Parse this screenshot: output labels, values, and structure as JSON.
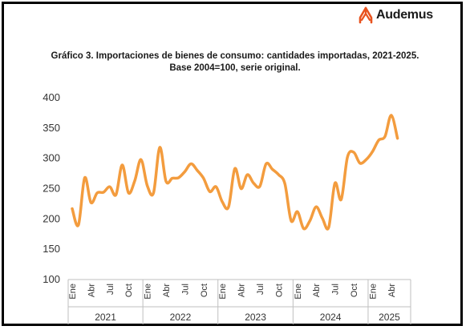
{
  "brand": {
    "name": "Audemus",
    "accent": "#e8531f"
  },
  "chart_data": {
    "type": "line",
    "title": "Gráfico 3. Importaciones de bienes de consumo: cantidades importadas, 2021-2025.",
    "subtitle": "Base 2004=100, serie original.",
    "xlabel": "",
    "ylabel": "",
    "ylim": [
      100,
      400
    ],
    "yticks": [
      100,
      150,
      200,
      250,
      300,
      350,
      400
    ],
    "grid": false,
    "color": "#f39c3e",
    "x": [
      "2021-01",
      "2021-02",
      "2021-03",
      "2021-04",
      "2021-05",
      "2021-06",
      "2021-07",
      "2021-08",
      "2021-09",
      "2021-10",
      "2021-11",
      "2021-12",
      "2022-01",
      "2022-02",
      "2022-03",
      "2022-04",
      "2022-05",
      "2022-06",
      "2022-07",
      "2022-08",
      "2022-09",
      "2022-10",
      "2022-11",
      "2022-12",
      "2023-01",
      "2023-02",
      "2023-03",
      "2023-04",
      "2023-05",
      "2023-06",
      "2023-07",
      "2023-08",
      "2023-09",
      "2023-10",
      "2023-11",
      "2023-12",
      "2024-01",
      "2024-02",
      "2024-03",
      "2024-04",
      "2024-05",
      "2024-06",
      "2024-07",
      "2024-08",
      "2024-09",
      "2024-10",
      "2024-11",
      "2024-12",
      "2025-01",
      "2025-02",
      "2025-03",
      "2025-04",
      "2025-05"
    ],
    "values": [
      217,
      190,
      268,
      227,
      243,
      244,
      253,
      240,
      289,
      243,
      263,
      298,
      255,
      243,
      318,
      262,
      267,
      268,
      278,
      291,
      280,
      267,
      245,
      253,
      228,
      220,
      283,
      250,
      273,
      259,
      254,
      291,
      282,
      273,
      258,
      197,
      212,
      184,
      197,
      220,
      201,
      186,
      259,
      232,
      302,
      310,
      292,
      298,
      311,
      330,
      336,
      371,
      333
    ],
    "x_tick_labels": [
      "Ene",
      "Abr",
      "Jul",
      "Oct"
    ],
    "years": [
      "2021",
      "2022",
      "2023",
      "2024",
      "2025"
    ]
  }
}
